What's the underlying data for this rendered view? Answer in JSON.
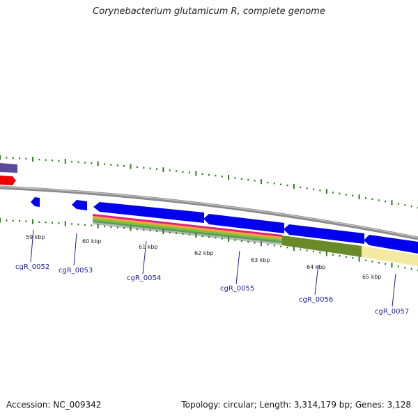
{
  "header": {
    "title": "Corynebacterium glutamicum R, complete genome"
  },
  "footer": {
    "accession": "Accession: NC_009342",
    "summary": "Topology: circular; Length: 3,314,179 bp; Genes: 3,128"
  },
  "scale": {
    "kbp_labels": [
      "59 kbp",
      "60 kbp",
      "61 kbp",
      "62 kbp",
      "63 kbp",
      "64 kbp",
      "65 kbp"
    ]
  },
  "genes": {
    "labels": [
      "cgR_0052",
      "cgR_0053",
      "cgR_0054",
      "cgR_0055",
      "cgR_0056",
      "cgR_0057"
    ]
  },
  "colors": {
    "backbone": "#8a8a8a",
    "tick": "#2a7a1a",
    "cds": "#0000ee",
    "gene_label": "#1a1aa0",
    "purple_feature": "#5a4a9a",
    "red_feature": "#ee0000",
    "olive_feature": "#6a8a2a",
    "pale_feature": "#f3e9a0"
  }
}
